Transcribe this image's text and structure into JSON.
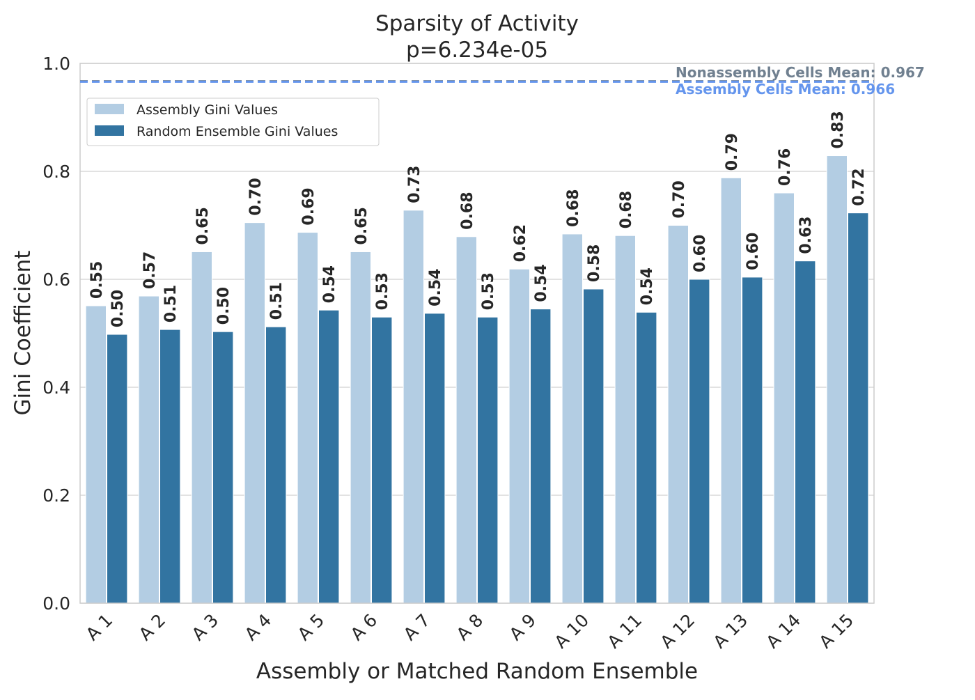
{
  "chart_data": {
    "type": "bar",
    "title": "Sparsity of Activity",
    "subtitle": "p=6.234e-05",
    "xlabel": "Assembly or Matched Random Ensemble",
    "ylabel": "Gini Coefficient",
    "ylim": [
      0,
      1.0
    ],
    "yticks": [
      "0.0",
      "0.2",
      "0.4",
      "0.6",
      "0.8",
      "1.0"
    ],
    "grid": "horizontal",
    "legend_position": "upper-left",
    "categories": [
      "A 1",
      "A 2",
      "A 3",
      "A 4",
      "A 5",
      "A 6",
      "A 7",
      "A 8",
      "A 9",
      "A 10",
      "A 11",
      "A 12",
      "A 13",
      "A 14",
      "A 15"
    ],
    "series": [
      {
        "name": "Assembly Gini Values",
        "color": "#b3cde3",
        "values": [
          0.551,
          0.569,
          0.651,
          0.705,
          0.687,
          0.651,
          0.728,
          0.679,
          0.619,
          0.684,
          0.681,
          0.7,
          0.788,
          0.76,
          0.829
        ],
        "labels": [
          "0.55",
          "0.57",
          "0.65",
          "0.70",
          "0.69",
          "0.65",
          "0.73",
          "0.68",
          "0.62",
          "0.68",
          "0.68",
          "0.70",
          "0.79",
          "0.76",
          "0.83"
        ]
      },
      {
        "name": "Random Ensemble Gini Values",
        "color": "#3274a1",
        "values": [
          0.498,
          0.507,
          0.503,
          0.512,
          0.543,
          0.53,
          0.537,
          0.53,
          0.545,
          0.582,
          0.539,
          0.6,
          0.604,
          0.634,
          0.723
        ],
        "labels": [
          "0.50",
          "0.51",
          "0.50",
          "0.51",
          "0.54",
          "0.53",
          "0.54",
          "0.53",
          "0.54",
          "0.58",
          "0.54",
          "0.60",
          "0.60",
          "0.63",
          "0.72"
        ]
      }
    ],
    "reference_lines": [
      {
        "label": "Nonassembly Cells Mean: 0.967",
        "value": 0.967,
        "color": "#708090",
        "style": "dashed"
      },
      {
        "label": "Assembly Cells Mean: 0.966",
        "value": 0.966,
        "color": "#6495ed",
        "style": "dashed"
      }
    ]
  }
}
